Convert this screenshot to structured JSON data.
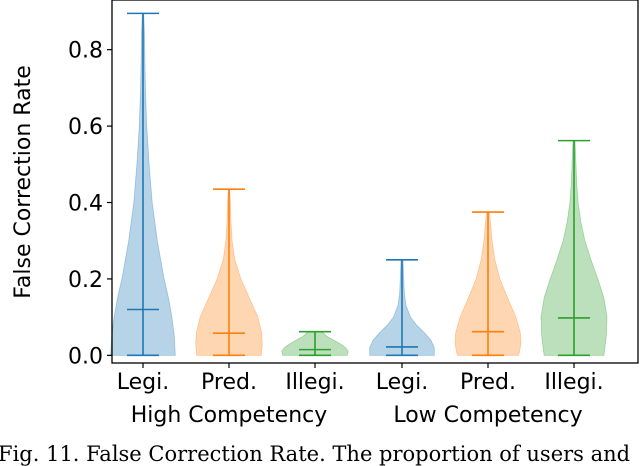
{
  "chart_data": {
    "type": "violin",
    "ylabel": "False Correction Rate",
    "ylim": [
      -0.02,
      0.93
    ],
    "yticks": [
      0.0,
      0.2,
      0.4,
      0.6,
      0.8
    ],
    "ytick_labels": [
      "0.0",
      "0.2",
      "0.4",
      "0.6",
      "0.8"
    ],
    "categories": [
      "Legi.",
      "Pred.",
      "Illegi.",
      "Legi.",
      "Pred.",
      "Illegi."
    ],
    "groups": [
      {
        "label": "High Competency",
        "categories": [
          0,
          1,
          2
        ]
      },
      {
        "label": "Low Competency",
        "categories": [
          3,
          4,
          5
        ]
      }
    ],
    "violins": [
      {
        "category": "Legi.",
        "group": "High Competency",
        "min": 0.0,
        "max": 0.895,
        "median": 0.12,
        "color": "#1f77b4",
        "density": [
          [
            0.0,
            0.95
          ],
          [
            0.05,
            0.92
          ],
          [
            0.1,
            0.85
          ],
          [
            0.15,
            0.75
          ],
          [
            0.2,
            0.62
          ],
          [
            0.3,
            0.42
          ],
          [
            0.4,
            0.27
          ],
          [
            0.5,
            0.18
          ],
          [
            0.6,
            0.11
          ],
          [
            0.7,
            0.07
          ],
          [
            0.8,
            0.05
          ],
          [
            0.85,
            0.04
          ],
          [
            0.895,
            0.02
          ]
        ]
      },
      {
        "category": "Pred.",
        "group": "High Competency",
        "min": 0.0,
        "max": 0.435,
        "median": 0.058,
        "color": "#ff7f0e",
        "density": [
          [
            0.0,
            0.95
          ],
          [
            0.03,
            0.98
          ],
          [
            0.06,
            0.96
          ],
          [
            0.1,
            0.85
          ],
          [
            0.15,
            0.6
          ],
          [
            0.2,
            0.35
          ],
          [
            0.25,
            0.17
          ],
          [
            0.3,
            0.09
          ],
          [
            0.35,
            0.06
          ],
          [
            0.4,
            0.04
          ],
          [
            0.435,
            0.02
          ]
        ]
      },
      {
        "category": "Illegi.",
        "group": "High Competency",
        "min": 0.0,
        "max": 0.062,
        "median": 0.015,
        "color": "#2ca02c",
        "density": [
          [
            0.0,
            0.95
          ],
          [
            0.01,
            0.98
          ],
          [
            0.02,
            0.9
          ],
          [
            0.03,
            0.75
          ],
          [
            0.04,
            0.55
          ],
          [
            0.05,
            0.35
          ],
          [
            0.062,
            0.2
          ]
        ]
      },
      {
        "category": "Legi.",
        "group": "Low Competency",
        "min": 0.0,
        "max": 0.25,
        "median": 0.022,
        "color": "#1f77b4",
        "density": [
          [
            0.0,
            0.95
          ],
          [
            0.02,
            0.95
          ],
          [
            0.04,
            0.85
          ],
          [
            0.06,
            0.65
          ],
          [
            0.08,
            0.42
          ],
          [
            0.1,
            0.25
          ],
          [
            0.13,
            0.12
          ],
          [
            0.16,
            0.07
          ],
          [
            0.2,
            0.05
          ],
          [
            0.25,
            0.03
          ]
        ]
      },
      {
        "category": "Pred.",
        "group": "Low Competency",
        "min": 0.0,
        "max": 0.375,
        "median": 0.062,
        "color": "#ff7f0e",
        "density": [
          [
            0.0,
            0.9
          ],
          [
            0.03,
            0.97
          ],
          [
            0.06,
            0.95
          ],
          [
            0.1,
            0.82
          ],
          [
            0.15,
            0.58
          ],
          [
            0.2,
            0.35
          ],
          [
            0.25,
            0.2
          ],
          [
            0.3,
            0.12
          ],
          [
            0.35,
            0.07
          ],
          [
            0.375,
            0.04
          ]
        ]
      },
      {
        "category": "Illegi.",
        "group": "Low Competency",
        "min": 0.0,
        "max": 0.562,
        "median": 0.098,
        "color": "#2ca02c",
        "density": [
          [
            0.0,
            0.88
          ],
          [
            0.05,
            0.95
          ],
          [
            0.1,
            0.97
          ],
          [
            0.15,
            0.88
          ],
          [
            0.2,
            0.7
          ],
          [
            0.25,
            0.5
          ],
          [
            0.3,
            0.32
          ],
          [
            0.35,
            0.2
          ],
          [
            0.4,
            0.12
          ],
          [
            0.45,
            0.08
          ],
          [
            0.5,
            0.06
          ],
          [
            0.562,
            0.03
          ]
        ]
      }
    ]
  },
  "caption": "Fig. 11.  False Correction Rate. The proportion of users and"
}
